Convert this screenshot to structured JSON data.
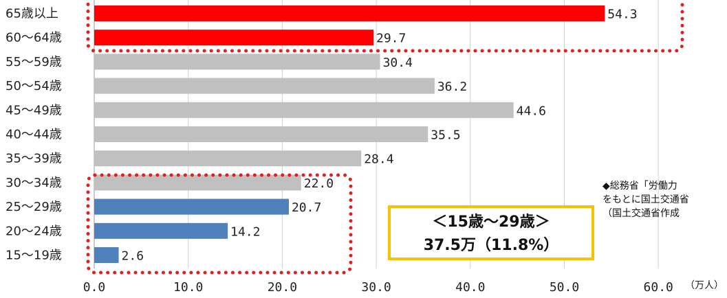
{
  "chart_data": {
    "type": "bar",
    "orientation": "horizontal",
    "categories": [
      "65歳以上",
      "60～64歳",
      "55～59歳",
      "50～54歳",
      "45～49歳",
      "40～44歳",
      "35～39歳",
      "30～34歳",
      "25～29歳",
      "20～24歳",
      "15～19歳"
    ],
    "values": [
      54.3,
      29.7,
      30.4,
      36.2,
      44.6,
      35.5,
      28.4,
      22.0,
      20.7,
      14.2,
      2.6
    ],
    "value_labels": [
      "54.3",
      "29.7",
      "30.4",
      "36.2",
      "44.6",
      "35.5",
      "28.4",
      "22.0",
      "20.7",
      "14.2",
      "2.6"
    ],
    "bar_colors": [
      "#ff0000",
      "#ff0000",
      "#c0c0c0",
      "#c0c0c0",
      "#c0c0c0",
      "#c0c0c0",
      "#c0c0c0",
      "#c0c0c0",
      "#4f81bd",
      "#4f81bd",
      "#4f81bd"
    ],
    "xlim": [
      0,
      60
    ],
    "x_ticks": [
      "0.0",
      "10.0",
      "20.0",
      "30.0",
      "40.0",
      "50.0",
      "60.0"
    ],
    "x_unit": "（万人）",
    "grid": "vertical"
  },
  "callout": {
    "line1": "＜15歳～29歳＞",
    "line2": "37.5万（11.8%）"
  },
  "source_note": {
    "line1": "◆総務省「労働力",
    "line2": "をもとに国土交通省",
    "line3": "（国土交通省作成"
  },
  "colors": {
    "highlight_red": "#ff0000",
    "highlight_blue": "#4f81bd",
    "neutral_gray": "#c0c0c0",
    "dotted_border": "#e02020",
    "callout_border": "#f7c300"
  }
}
